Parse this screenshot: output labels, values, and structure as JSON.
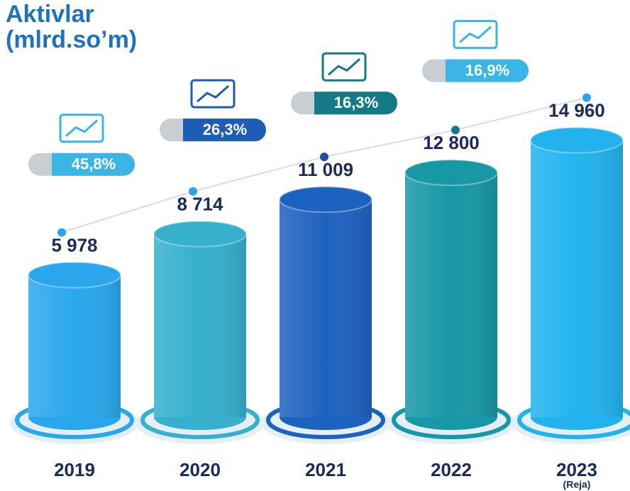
{
  "chart_data": {
    "type": "bar",
    "title": "Aktivlar",
    "subtitle": "(mlrd.so’m)",
    "categories": [
      "2019",
      "2020",
      "2021",
      "2022",
      "2023"
    ],
    "category_note": "(Reja)",
    "values": [
      5978,
      8714,
      11009,
      12800,
      14960
    ],
    "value_labels": [
      "5 978",
      "8 714",
      "11 009",
      "12 800",
      "14 960"
    ],
    "colors": [
      "#2aa7ec",
      "#36b0cc",
      "#1e62c0",
      "#1897a6",
      "#22b3ee"
    ],
    "growth": {
      "values": [
        45.8,
        26.3,
        16.3,
        16.9
      ],
      "value_labels": [
        "45,8%",
        "26,3%",
        "16,3%",
        "16,9%"
      ],
      "colors": [
        "#3bb4e6",
        "#1f5db4",
        "#137a86",
        "#3bb4e6"
      ]
    }
  }
}
